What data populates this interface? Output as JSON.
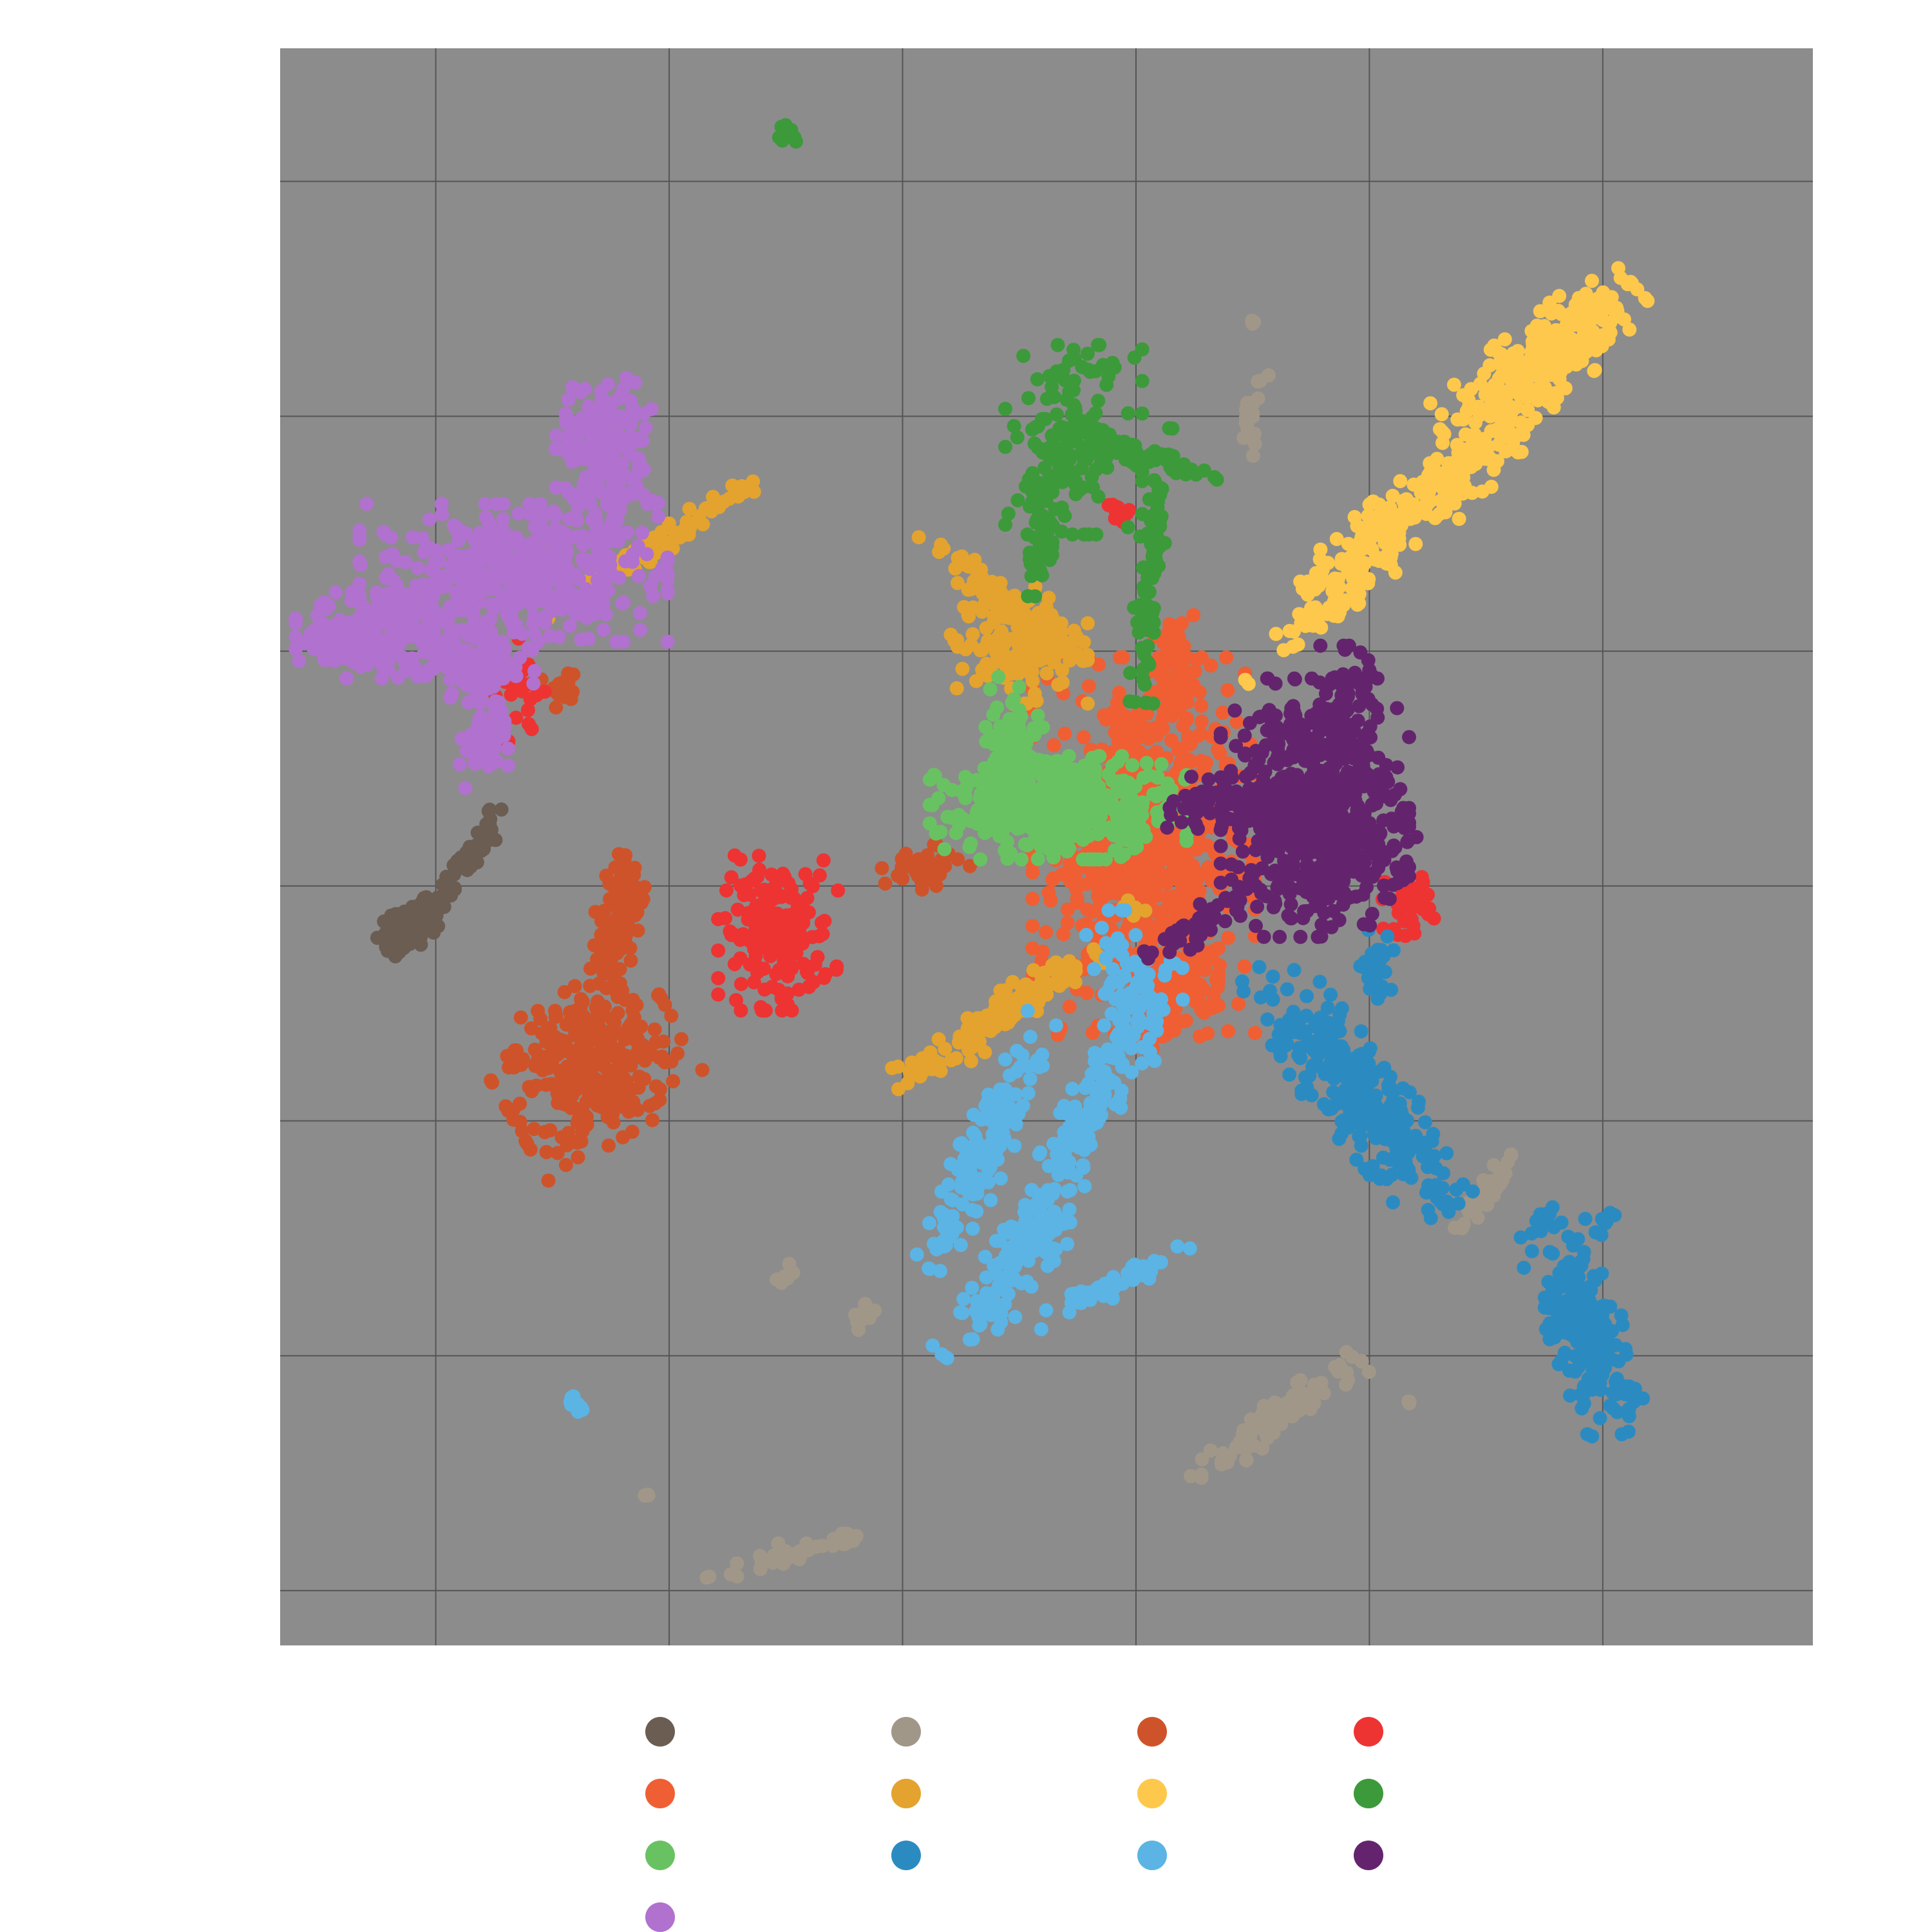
{
  "chart_data": {
    "type": "scatter",
    "title": "",
    "xlabel": "",
    "ylabel": "",
    "xlim": [
      -9.5,
      10.2
    ],
    "ylim": [
      -10.2,
      10.2
    ],
    "grid": true,
    "background": "#8c8c8c",
    "grid_color": "#555555",
    "x_gridlines": [
      -7.5,
      -4.5,
      -1.5,
      1.5,
      4.5,
      7.5
    ],
    "y_gridlines": [
      -9.5,
      -6.5,
      -3.5,
      -0.5,
      2.5,
      5.5,
      8.5
    ],
    "legend_position": "bottom",
    "series": [
      {
        "color": "#6b5d52",
        "clusters": [
          {
            "cx": -7.8,
            "cy": -1.0,
            "sx": 0.22,
            "sy": 0.12,
            "angle": 38,
            "n": 120
          },
          {
            "cx": -7.1,
            "cy": -0.15,
            "sx": 0.45,
            "sy": 0.08,
            "angle": 55,
            "n": 60
          }
        ]
      },
      {
        "color": "#a19788",
        "clusters": [
          {
            "cx": 3.3,
            "cy": -7.3,
            "sx": 0.6,
            "sy": 0.1,
            "angle": 35,
            "n": 90
          },
          {
            "cx": 6.0,
            "cy": -4.4,
            "sx": 0.35,
            "sy": 0.05,
            "angle": 55,
            "n": 40
          },
          {
            "cx": 3.0,
            "cy": 5.5,
            "sx": 0.25,
            "sy": 0.05,
            "angle": 80,
            "n": 20
          },
          {
            "cx": -2.8,
            "cy": -9.0,
            "sx": 0.6,
            "sy": 0.08,
            "angle": 15,
            "n": 40
          },
          {
            "cx": -2.0,
            "cy": -6.0,
            "sx": 0.15,
            "sy": 0.05,
            "angle": 60,
            "n": 12
          },
          {
            "cx": -3.0,
            "cy": -5.5,
            "sx": 0.1,
            "sy": 0.05,
            "angle": 50,
            "n": 8
          },
          {
            "cx": 3.0,
            "cy": 6.7,
            "sx": 0.02,
            "sy": 0.02,
            "angle": 0,
            "n": 3
          },
          {
            "cx": -4.8,
            "cy": -8.3,
            "sx": 0.02,
            "sy": 0.02,
            "angle": 0,
            "n": 3
          },
          {
            "cx": 5.0,
            "cy": -7.1,
            "sx": 0.02,
            "sy": 0.02,
            "angle": 0,
            "n": 3
          }
        ]
      },
      {
        "color": "#cf532a",
        "clusters": [
          {
            "cx": -5.5,
            "cy": -2.8,
            "sx": 0.55,
            "sy": 0.45,
            "angle": 30,
            "n": 320
          },
          {
            "cx": -5.2,
            "cy": -1.2,
            "sx": 0.5,
            "sy": 0.14,
            "angle": 80,
            "n": 110
          },
          {
            "cx": -5.9,
            "cy": 2.0,
            "sx": 0.12,
            "sy": 0.1,
            "angle": 0,
            "n": 25
          },
          {
            "cx": -1.2,
            "cy": -0.3,
            "sx": 0.25,
            "sy": 0.15,
            "angle": 20,
            "n": 40
          }
        ]
      },
      {
        "color": "#ee3333",
        "clusters": [
          {
            "cx": -3.1,
            "cy": -1.1,
            "sx": 0.35,
            "sy": 0.45,
            "angle": 0,
            "n": 180
          },
          {
            "cx": 5.0,
            "cy": -0.7,
            "sx": 0.15,
            "sy": 0.2,
            "angle": 0,
            "n": 40
          },
          {
            "cx": 1.3,
            "cy": 4.3,
            "sx": 0.1,
            "sy": 0.08,
            "angle": 45,
            "n": 10
          },
          {
            "cx": -6.4,
            "cy": 2.0,
            "sx": 0.15,
            "sy": 0.3,
            "angle": 0,
            "n": 25
          }
        ]
      },
      {
        "color": "#ef5f33",
        "clusters": [
          {
            "cx": 1.6,
            "cy": 0.0,
            "sx": 0.65,
            "sy": 1.1,
            "angle": 0,
            "n": 700
          },
          {
            "cx": 1.9,
            "cy": -1.7,
            "sx": 0.3,
            "sy": 0.4,
            "angle": 0,
            "n": 120
          },
          {
            "cx": 2.0,
            "cy": 2.3,
            "sx": 0.15,
            "sy": 0.3,
            "angle": 0,
            "n": 60
          }
        ]
      },
      {
        "color": "#e3a32e",
        "clusters": [
          {
            "cx": 0.0,
            "cy": 2.6,
            "sx": 0.4,
            "sy": 0.35,
            "angle": 0,
            "n": 160
          },
          {
            "cx": -0.4,
            "cy": 3.3,
            "sx": 0.55,
            "sy": 0.08,
            "angle": -40,
            "n": 60
          },
          {
            "cx": -0.3,
            "cy": -2.2,
            "sx": 0.7,
            "sy": 0.12,
            "angle": 35,
            "n": 130
          },
          {
            "cx": -4.6,
            "cy": 3.9,
            "sx": 0.8,
            "sy": 0.07,
            "angle": 33,
            "n": 90
          },
          {
            "cx": 1.4,
            "cy": -0.8,
            "sx": 0.1,
            "sy": 0.06,
            "angle": 0,
            "n": 6
          }
        ]
      },
      {
        "color": "#fdc84b",
        "clusters": [
          {
            "cx": 6.7,
            "cy": 6.2,
            "sx": 0.7,
            "sy": 0.25,
            "angle": 42,
            "n": 260
          },
          {
            "cx": 5.1,
            "cy": 4.3,
            "sx": 1.0,
            "sy": 0.2,
            "angle": 40,
            "n": 220
          },
          {
            "cx": 3.9,
            "cy": 3.0,
            "sx": 0.6,
            "sy": 0.08,
            "angle": 40,
            "n": 50
          }
        ]
      },
      {
        "color": "#3c9a3a",
        "clusters": [
          {
            "cx": 0.7,
            "cy": 5.2,
            "sx": 0.4,
            "sy": 0.55,
            "angle": 0,
            "n": 160
          },
          {
            "cx": 1.6,
            "cy": 5.0,
            "sx": 0.45,
            "sy": 0.06,
            "angle": -20,
            "n": 60
          },
          {
            "cx": 0.3,
            "cy": 4.0,
            "sx": 0.5,
            "sy": 0.08,
            "angle": 85,
            "n": 60
          },
          {
            "cx": 1.7,
            "cy": 3.6,
            "sx": 0.8,
            "sy": 0.08,
            "angle": 85,
            "n": 90
          },
          {
            "cx": -3.0,
            "cy": 9.1,
            "sx": 0.08,
            "sy": 0.04,
            "angle": -45,
            "n": 15
          }
        ]
      },
      {
        "color": "#69c262",
        "clusters": [
          {
            "cx": 0.5,
            "cy": 0.5,
            "sx": 0.75,
            "sy": 0.3,
            "angle": 0,
            "n": 420
          },
          {
            "cx": -0.1,
            "cy": 1.4,
            "sx": 0.2,
            "sy": 0.35,
            "angle": 0,
            "n": 70
          }
        ]
      },
      {
        "color": "#2b8bc1",
        "clusters": [
          {
            "cx": 4.3,
            "cy": -3.1,
            "sx": 0.9,
            "sy": 0.25,
            "angle": -50,
            "n": 300
          },
          {
            "cx": 7.3,
            "cy": -6.2,
            "sx": 0.65,
            "sy": 0.22,
            "angle": -70,
            "n": 220
          },
          {
            "cx": 4.6,
            "cy": -1.5,
            "sx": 0.1,
            "sy": 0.2,
            "angle": 0,
            "n": 25
          },
          {
            "cx": 6.8,
            "cy": -4.7,
            "sx": 0.1,
            "sy": 0.05,
            "angle": 45,
            "n": 10
          },
          {
            "cx": 7.5,
            "cy": -4.8,
            "sx": 0.1,
            "sy": 0.05,
            "angle": 50,
            "n": 10
          }
        ]
      },
      {
        "color": "#5bb4e4",
        "clusters": [
          {
            "cx": -0.4,
            "cy": -3.8,
            "sx": 0.8,
            "sy": 0.15,
            "angle": 65,
            "n": 150
          },
          {
            "cx": 1.0,
            "cy": -3.2,
            "sx": 0.9,
            "sy": 0.15,
            "angle": 60,
            "n": 150
          },
          {
            "cx": 0.0,
            "cy": -5.3,
            "sx": 0.7,
            "sy": 0.18,
            "angle": 55,
            "n": 120
          },
          {
            "cx": 1.2,
            "cy": -5.6,
            "sx": 0.5,
            "sy": 0.07,
            "angle": 25,
            "n": 50
          },
          {
            "cx": 1.3,
            "cy": -1.8,
            "sx": 0.2,
            "sy": 0.45,
            "angle": 0,
            "n": 60
          },
          {
            "cx": -5.7,
            "cy": -7.1,
            "sx": 0.08,
            "sy": 0.04,
            "angle": -45,
            "n": 12
          }
        ]
      },
      {
        "color": "#63246d",
        "clusters": [
          {
            "cx": 3.8,
            "cy": 0.5,
            "sx": 0.55,
            "sy": 0.75,
            "angle": 0,
            "n": 520
          },
          {
            "cx": 3.0,
            "cy": 0.5,
            "sx": 0.5,
            "sy": 0.18,
            "angle": 0,
            "n": 150
          },
          {
            "cx": 4.2,
            "cy": 1.8,
            "sx": 0.15,
            "sy": 0.35,
            "angle": 0,
            "n": 70
          },
          {
            "cx": 2.3,
            "cy": -1.0,
            "sx": 0.35,
            "sy": 0.1,
            "angle": 30,
            "n": 50
          },
          {
            "cx": 4.4,
            "cy": -0.1,
            "sx": 0.35,
            "sy": 0.25,
            "angle": 0,
            "n": 60
          }
        ]
      },
      {
        "color": "#b171ce",
        "clusters": [
          {
            "cx": -6.5,
            "cy": 3.5,
            "sx": 0.9,
            "sy": 0.4,
            "angle": 0,
            "n": 420
          },
          {
            "cx": -8.2,
            "cy": 2.7,
            "sx": 0.5,
            "sy": 0.25,
            "angle": 0,
            "n": 200
          },
          {
            "cx": -5.3,
            "cy": 5.0,
            "sx": 0.3,
            "sy": 0.45,
            "angle": 0,
            "n": 180
          },
          {
            "cx": -7.0,
            "cy": 2.3,
            "sx": 0.35,
            "sy": 0.2,
            "angle": 0,
            "n": 100
          },
          {
            "cx": -6.9,
            "cy": 1.4,
            "sx": 0.15,
            "sy": 0.35,
            "angle": 0,
            "n": 50
          }
        ]
      }
    ]
  }
}
